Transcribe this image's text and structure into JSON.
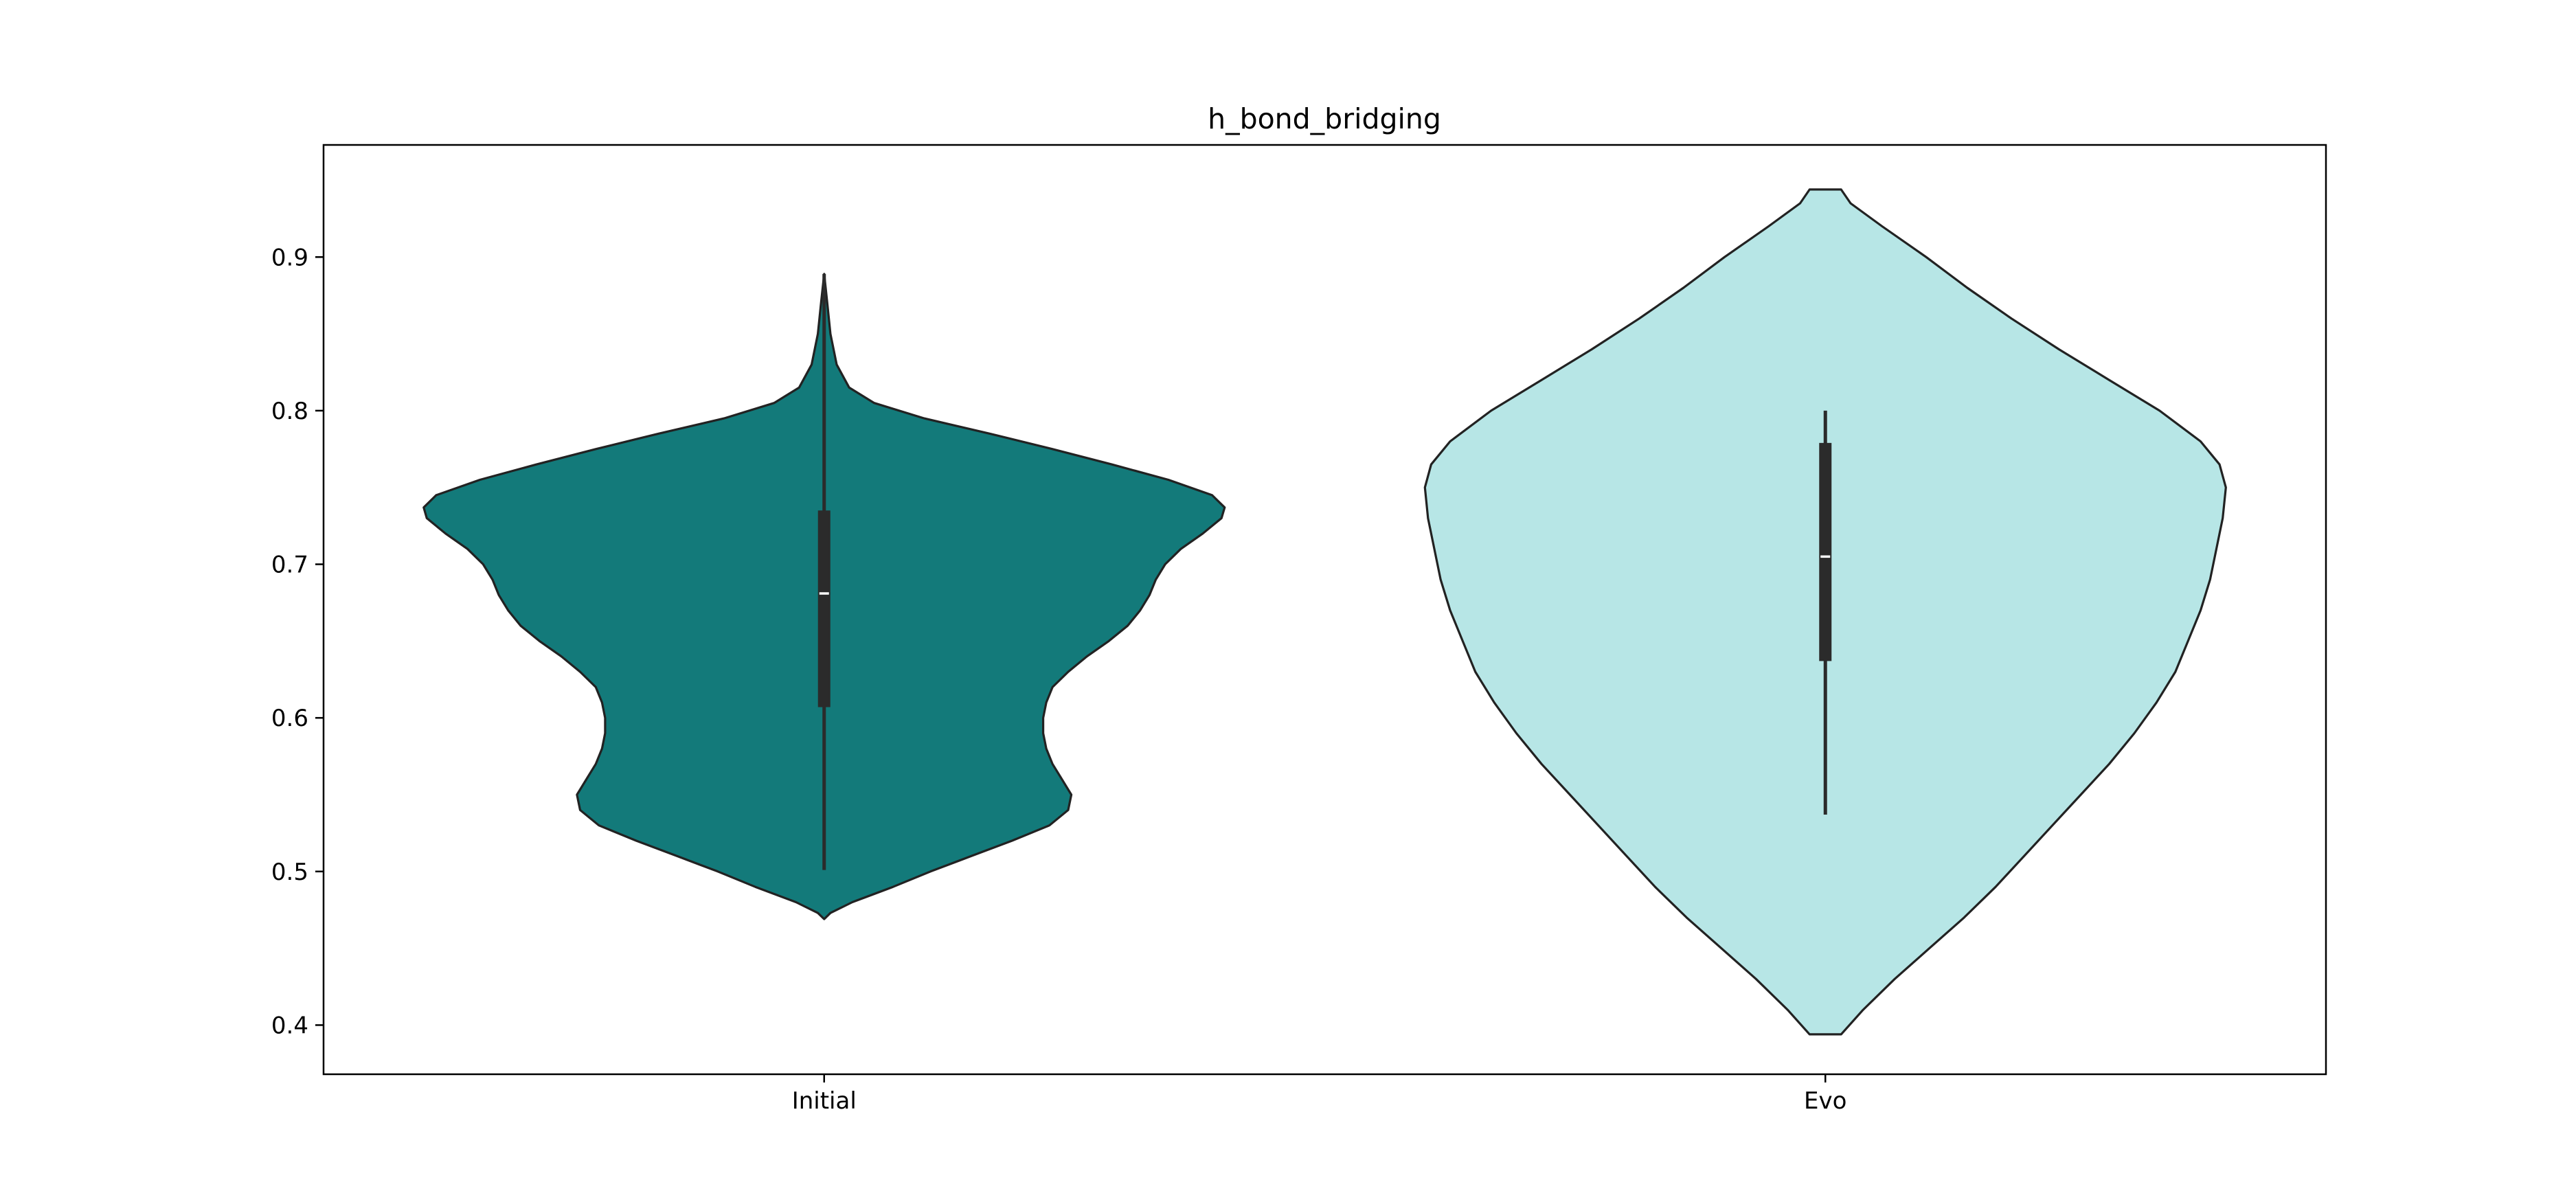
{
  "chart_data": {
    "type": "violin",
    "title": "h_bond_bridging",
    "xlabel": "",
    "ylabel": "",
    "categories": [
      "Initial",
      "Evo"
    ],
    "ylim": [
      0.368,
      0.973
    ],
    "yticks": [
      0.4,
      0.5,
      0.6,
      0.7,
      0.8,
      0.9
    ],
    "ytick_labels": [
      "0.4",
      "0.5",
      "0.6",
      "0.7",
      "0.8",
      "0.9"
    ],
    "grid": false,
    "legend": "none",
    "colors": {
      "Initial": "#137a7a",
      "Evo": "#b7e6e6",
      "edge": "#222222",
      "box": "#2b2b2b",
      "median": "#ffffff"
    },
    "series": [
      {
        "category": "Initial",
        "width_scale": 0.8,
        "box": {
          "whisker_low": 0.501,
          "q1": 0.607,
          "median": 0.681,
          "q3": 0.735,
          "whisker_high": 0.889
        },
        "density": [
          [
            0.469,
            0.0
          ],
          [
            0.473,
            0.02
          ],
          [
            0.48,
            0.09
          ],
          [
            0.49,
            0.22
          ],
          [
            0.5,
            0.34
          ],
          [
            0.51,
            0.47
          ],
          [
            0.52,
            0.6
          ],
          [
            0.53,
            0.72
          ],
          [
            0.54,
            0.78
          ],
          [
            0.55,
            0.79
          ],
          [
            0.56,
            0.76
          ],
          [
            0.57,
            0.73
          ],
          [
            0.58,
            0.71
          ],
          [
            0.59,
            0.7
          ],
          [
            0.6,
            0.7
          ],
          [
            0.61,
            0.71
          ],
          [
            0.62,
            0.73
          ],
          [
            0.63,
            0.78
          ],
          [
            0.64,
            0.84
          ],
          [
            0.65,
            0.91
          ],
          [
            0.66,
            0.97
          ],
          [
            0.67,
            1.01
          ],
          [
            0.68,
            1.04
          ],
          [
            0.69,
            1.06
          ],
          [
            0.7,
            1.09
          ],
          [
            0.71,
            1.14
          ],
          [
            0.72,
            1.21
          ],
          [
            0.73,
            1.27
          ],
          [
            0.737,
            1.28
          ],
          [
            0.745,
            1.24
          ],
          [
            0.755,
            1.1
          ],
          [
            0.765,
            0.92
          ],
          [
            0.775,
            0.73
          ],
          [
            0.785,
            0.53
          ],
          [
            0.795,
            0.32
          ],
          [
            0.805,
            0.16
          ],
          [
            0.815,
            0.08
          ],
          [
            0.83,
            0.04
          ],
          [
            0.85,
            0.02
          ],
          [
            0.87,
            0.01
          ],
          [
            0.889,
            0.0
          ]
        ]
      },
      {
        "category": "Evo",
        "width_scale": 0.8,
        "box": {
          "whisker_low": 0.537,
          "q1": 0.637,
          "median": 0.705,
          "q3": 0.779,
          "whisker_high": 0.8
        },
        "density": [
          [
            0.394,
            0.05
          ],
          [
            0.41,
            0.12
          ],
          [
            0.43,
            0.22
          ],
          [
            0.45,
            0.33
          ],
          [
            0.47,
            0.44
          ],
          [
            0.49,
            0.54
          ],
          [
            0.51,
            0.63
          ],
          [
            0.53,
            0.72
          ],
          [
            0.55,
            0.81
          ],
          [
            0.57,
            0.9
          ],
          [
            0.59,
            0.98
          ],
          [
            0.61,
            1.05
          ],
          [
            0.63,
            1.11
          ],
          [
            0.65,
            1.15
          ],
          [
            0.67,
            1.19
          ],
          [
            0.69,
            1.22
          ],
          [
            0.71,
            1.24
          ],
          [
            0.73,
            1.26
          ],
          [
            0.75,
            1.27
          ],
          [
            0.765,
            1.25
          ],
          [
            0.78,
            1.19
          ],
          [
            0.8,
            1.06
          ],
          [
            0.82,
            0.9
          ],
          [
            0.84,
            0.74
          ],
          [
            0.86,
            0.59
          ],
          [
            0.88,
            0.45
          ],
          [
            0.9,
            0.32
          ],
          [
            0.92,
            0.18
          ],
          [
            0.935,
            0.08
          ],
          [
            0.944,
            0.05
          ]
        ]
      }
    ]
  }
}
